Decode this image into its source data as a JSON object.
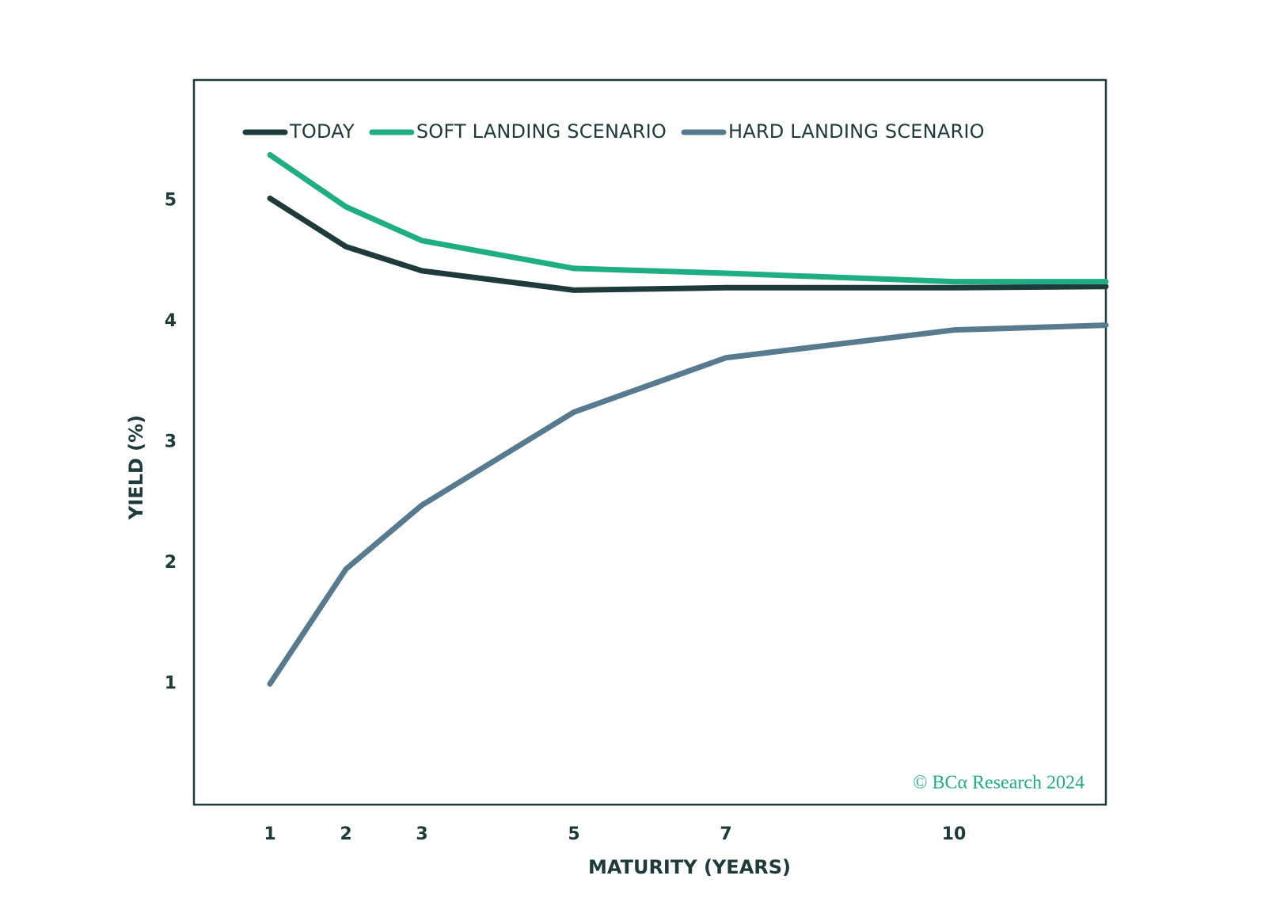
{
  "chart_data": {
    "type": "line",
    "x": [
      1,
      2,
      3,
      5,
      7,
      10,
      12
    ],
    "series": [
      {
        "name": "TODAY",
        "color": "#1e3a3a",
        "values": [
          5.02,
          4.62,
          4.42,
          4.26,
          4.28,
          4.28,
          4.29
        ]
      },
      {
        "name": "SOFT LANDING SCENARIO",
        "color": "#1fae84",
        "values": [
          5.38,
          4.95,
          4.67,
          4.44,
          4.4,
          4.33,
          4.33
        ]
      },
      {
        "name": "HARD LANDING SCENARIO",
        "color": "#587a8e",
        "values": [
          1.0,
          1.95,
          2.48,
          3.25,
          3.7,
          3.93,
          3.97
        ]
      }
    ],
    "xlabel": "MATURITY (YEARS)",
    "ylabel": "YIELD (%)",
    "xlim": [
      0,
      12
    ],
    "xticks": [
      1,
      2,
      3,
      5,
      7,
      10
    ],
    "ylim": [
      0,
      6
    ],
    "yticks": [
      1,
      2,
      3,
      4,
      5
    ],
    "grid": false,
    "legend": "top",
    "annotation": "© BCα Research 2024"
  }
}
